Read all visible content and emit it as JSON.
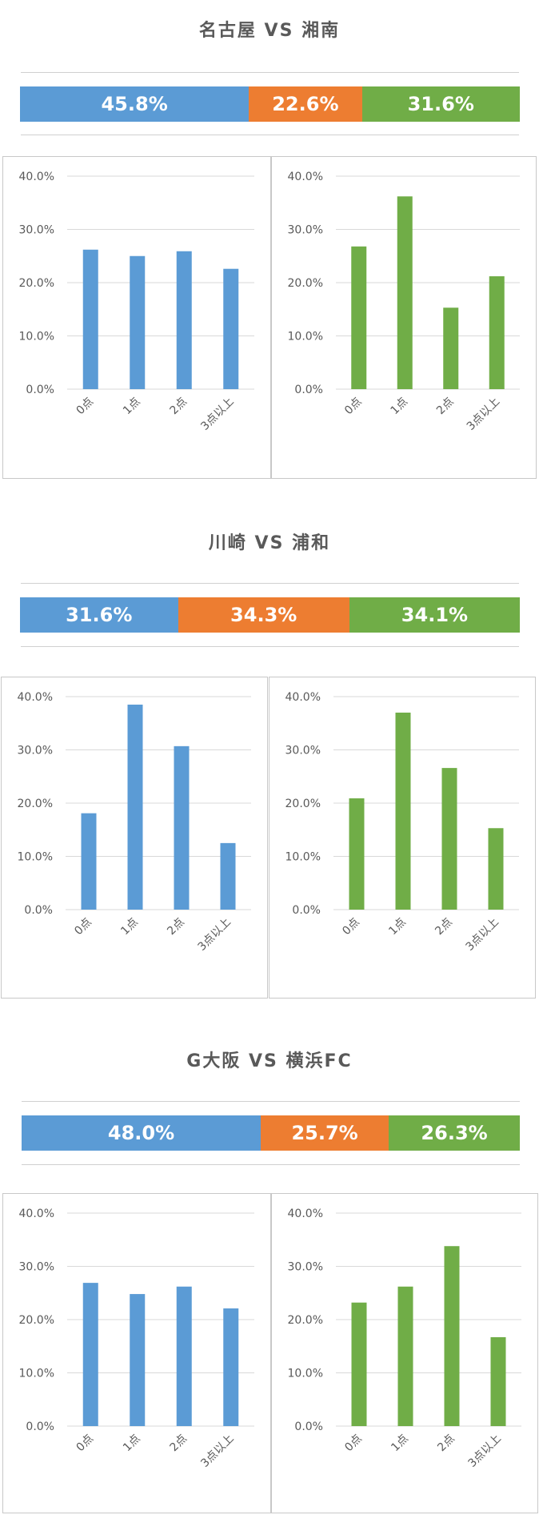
{
  "colors": {
    "home": "#5b9bd5",
    "draw": "#ed7d31",
    "away": "#70ad47",
    "grid": "#d9d9d9",
    "text": "#595959"
  },
  "matches": [
    {
      "title": "名古屋 VS 湘南",
      "probabilities": {
        "home": 45.8,
        "draw": 22.6,
        "away": 31.6
      },
      "prob_labels": {
        "home": "45.8%",
        "draw": "22.6%",
        "away": "31.6%"
      }
    },
    {
      "title": "川崎 VS 浦和",
      "probabilities": {
        "home": 31.6,
        "draw": 34.3,
        "away": 34.1
      },
      "prob_labels": {
        "home": "31.6%",
        "draw": "34.3%",
        "away": "34.1%"
      }
    },
    {
      "title": "G大阪 VS 横浜FC",
      "probabilities": {
        "home": 48.0,
        "draw": 25.7,
        "away": 26.3
      },
      "prob_labels": {
        "home": "48.0%",
        "draw": "25.7%",
        "away": "26.3%"
      }
    }
  ],
  "chart_data": [
    {
      "type": "bar",
      "match": 0,
      "side": "home",
      "color": "#5b9bd5",
      "categories": [
        "0点",
        "1点",
        "2点",
        "3点以上"
      ],
      "values": [
        26.2,
        25.0,
        25.9,
        22.6
      ],
      "ylim": [
        0,
        40
      ],
      "yticks": [
        "0.0%",
        "10.0%",
        "20.0%",
        "30.0%",
        "40.0%"
      ],
      "grid": true
    },
    {
      "type": "bar",
      "match": 0,
      "side": "away",
      "color": "#70ad47",
      "categories": [
        "0点",
        "1点",
        "2点",
        "3点以上"
      ],
      "values": [
        26.8,
        36.2,
        15.3,
        21.2
      ],
      "ylim": [
        0,
        40
      ],
      "yticks": [
        "0.0%",
        "10.0%",
        "20.0%",
        "30.0%",
        "40.0%"
      ],
      "grid": true
    },
    {
      "type": "bar",
      "match": 1,
      "side": "home",
      "color": "#5b9bd5",
      "categories": [
        "0点",
        "1点",
        "2点",
        "3点以上"
      ],
      "values": [
        18.1,
        38.5,
        30.7,
        12.5
      ],
      "ylim": [
        0,
        40
      ],
      "yticks": [
        "0.0%",
        "10.0%",
        "20.0%",
        "30.0%",
        "40.0%"
      ],
      "grid": true
    },
    {
      "type": "bar",
      "match": 1,
      "side": "away",
      "color": "#70ad47",
      "categories": [
        "0点",
        "1点",
        "2点",
        "3点以上"
      ],
      "values": [
        20.9,
        37.0,
        26.6,
        15.3
      ],
      "ylim": [
        0,
        40
      ],
      "yticks": [
        "0.0%",
        "10.0%",
        "20.0%",
        "30.0%",
        "40.0%"
      ],
      "grid": true
    },
    {
      "type": "bar",
      "match": 2,
      "side": "home",
      "color": "#5b9bd5",
      "categories": [
        "0点",
        "1点",
        "2点",
        "3点以上"
      ],
      "values": [
        26.9,
        24.8,
        26.2,
        22.1
      ],
      "ylim": [
        0,
        40
      ],
      "yticks": [
        "0.0%",
        "10.0%",
        "20.0%",
        "30.0%",
        "40.0%"
      ],
      "grid": true
    },
    {
      "type": "bar",
      "match": 2,
      "side": "away",
      "color": "#70ad47",
      "categories": [
        "0点",
        "1点",
        "2点",
        "3点以上"
      ],
      "values": [
        23.2,
        26.2,
        33.8,
        16.7
      ],
      "ylim": [
        0,
        40
      ],
      "yticks": [
        "0.0%",
        "10.0%",
        "20.0%",
        "30.0%",
        "40.0%"
      ],
      "grid": true
    }
  ]
}
